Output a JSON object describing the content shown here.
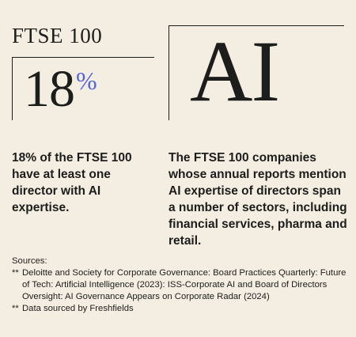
{
  "left": {
    "title": "FTSE 100",
    "stat_value": "18",
    "stat_unit": "%",
    "description": "18% of the FTSE 100 have at least one director with AI expertise."
  },
  "right": {
    "headline": "AI",
    "description": "The FTSE 100 companies whose annual reports mention AI expertise of directors span a number of sectors, including financial services, pharma and retail."
  },
  "sources": {
    "label": "Sources:",
    "items": [
      {
        "marker": "**",
        "text": "Deloitte and Society for Corporate Governance: Board Practices Quarterly: Future of Tech: Artificial Intelligence (2023): ISS-Corporate AI and Board of Directors Oversight: AI Governance Appears on Corporate Radar (2024)"
      },
      {
        "marker": "**",
        "text": "Data sourced by Freshfields"
      }
    ]
  },
  "colors": {
    "background": "#f4ede2",
    "text": "#1d1d1b",
    "accent": "#5566d8"
  }
}
